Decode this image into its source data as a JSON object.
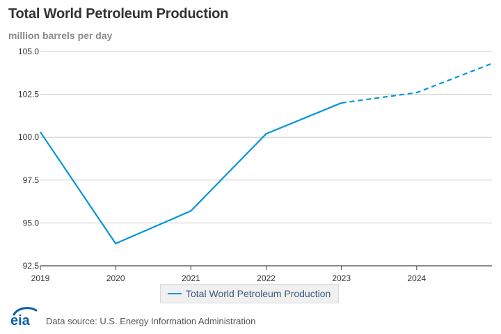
{
  "header": {
    "title": "Total World Petroleum Production",
    "subtitle": "million barrels per day"
  },
  "chart_data": {
    "type": "line",
    "title": "Total World Petroleum Production",
    "ylabel": "million barrels per day",
    "xlabel": "",
    "ylim": [
      92.5,
      105.0
    ],
    "xlim": [
      2019,
      2025
    ],
    "y_ticks": [
      "92.5",
      "95.0",
      "97.5",
      "100.0",
      "102.5",
      "105.0"
    ],
    "x_ticks": [
      "2019",
      "2020",
      "2021",
      "2022",
      "2023",
      "2024"
    ],
    "grid": true,
    "legend_position": "bottom-center",
    "series": [
      {
        "name": "Total World Petroleum Production",
        "color": "#0096d6",
        "x": [
          2019,
          2020,
          2021,
          2022,
          2023
        ],
        "y": [
          100.3,
          93.8,
          95.7,
          100.2,
          102.0
        ],
        "style": "solid"
      },
      {
        "name": "Total World Petroleum Production",
        "color": "#0096d6",
        "x": [
          2023,
          2024,
          2025
        ],
        "y": [
          102.0,
          102.6,
          104.3
        ],
        "style": "dashed"
      }
    ]
  },
  "legend": {
    "label": "Total World Petroleum Production"
  },
  "footer": {
    "logo_text": "eia",
    "source": "Data source: U.S. Energy Information Administration"
  },
  "colors": {
    "line": "#0096d6",
    "grid": "#cccccc",
    "logo": "#0a5fa8"
  }
}
